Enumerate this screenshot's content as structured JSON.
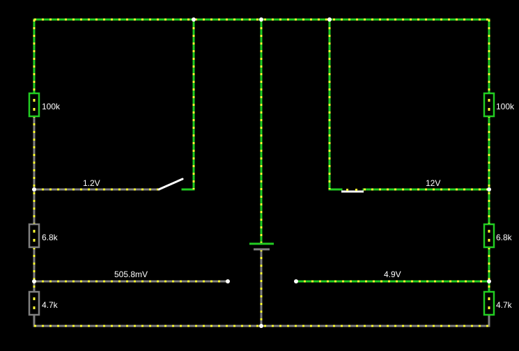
{
  "colors": {
    "background": "#000000",
    "wire_live": "#22cc22",
    "wire_ground": "#808080",
    "current_dots": "#ffff33",
    "node": "#ffffff",
    "label": "#ffffff"
  },
  "components": {
    "left_r_top": "100k",
    "left_r_mid": "6.8k",
    "left_r_bottom": "4.7k",
    "right_r_top": "100k",
    "right_r_mid": "6.8k",
    "right_r_bottom": "4.7k",
    "left_switch_icon": "switch-open-icon",
    "right_switch_icon": "switch-closed-icon",
    "battery_icon": "battery-icon"
  },
  "voltages": {
    "left_upper_node": "1.2V",
    "left_output": "505.8mV",
    "right_upper_node": "12V",
    "right_output": "4.9V"
  }
}
